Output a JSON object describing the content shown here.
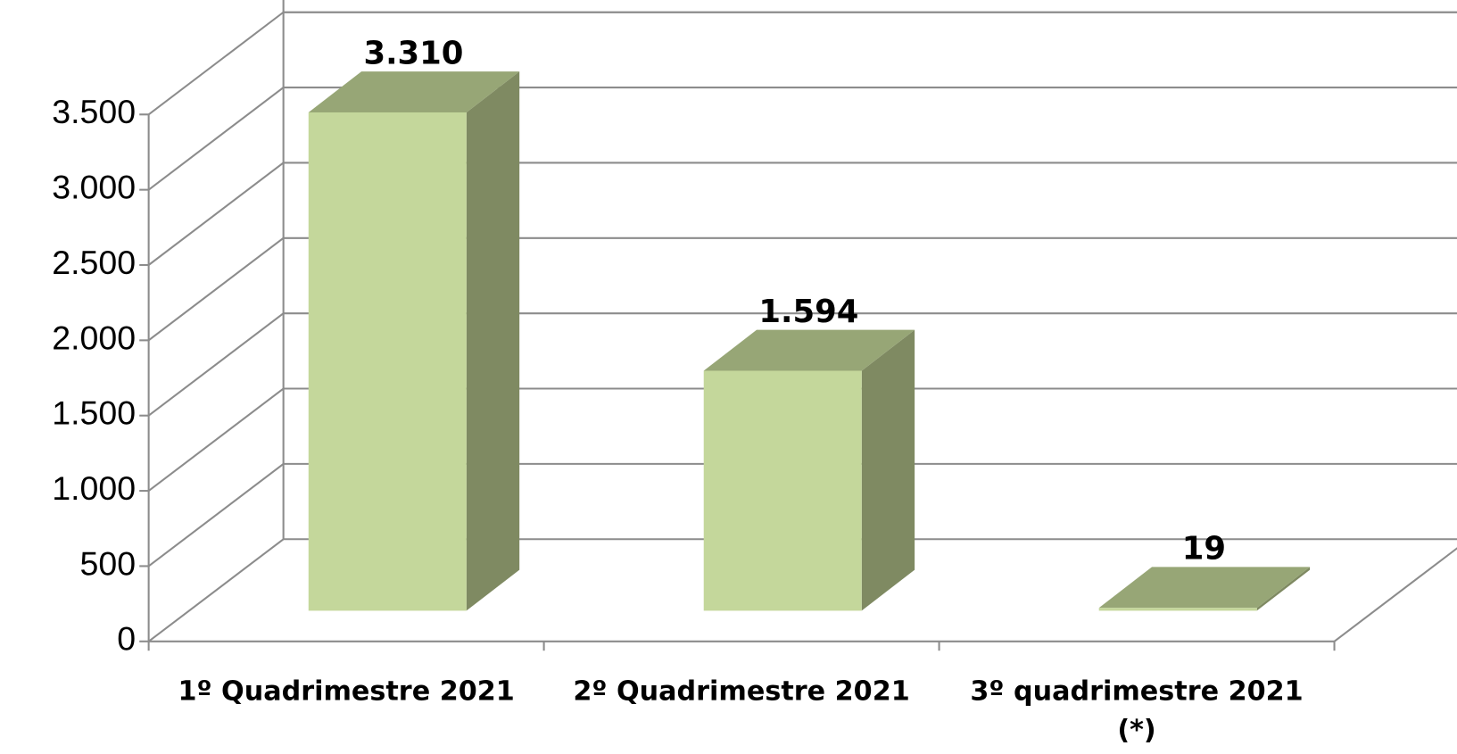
{
  "chart_data": {
    "type": "bar3d",
    "categories": [
      "1º Quadrimestre 2021",
      "2º Quadrimestre 2021",
      "3º quadrimestre 2021 (*)"
    ],
    "values": [
      3310,
      1594,
      19
    ],
    "value_labels": [
      "3.310",
      "1.594",
      "19"
    ],
    "color": "#c4d79b",
    "ylim": [
      0,
      3500
    ],
    "yticks": [
      0,
      500,
      {
        "value": 1000,
        "label": "1.000"
      },
      {
        "value": 1500,
        "label": "1.500"
      },
      {
        "value": 2000,
        "label": "2.000"
      },
      {
        "value": 2500,
        "label": "2.500"
      },
      {
        "value": 3000,
        "label": "3.000"
      },
      {
        "value": 3500,
        "label": "3.500"
      }
    ],
    "grid": true
  }
}
